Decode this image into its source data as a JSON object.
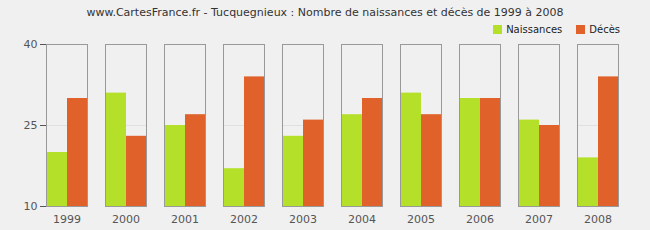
{
  "chart_data": {
    "type": "bar",
    "title": "www.CartesFrance.fr - Tucquegnieux : Nombre de naissances et décès de 1999 à 2008",
    "categories": [
      "1999",
      "2000",
      "2001",
      "2002",
      "2003",
      "2004",
      "2005",
      "2006",
      "2007",
      "2008"
    ],
    "series": [
      {
        "name": "Naissances",
        "color": "#b5e02a",
        "values": [
          20,
          31,
          25,
          17,
          23,
          27,
          31,
          30,
          26,
          19
        ]
      },
      {
        "name": "Décès",
        "color": "#e0622a",
        "values": [
          30,
          23,
          27,
          34,
          26,
          30,
          27,
          30,
          25,
          34
        ]
      }
    ],
    "ylim": [
      10,
      40
    ],
    "yticks": [
      10,
      25,
      40
    ],
    "grid": true,
    "legend": "top-right"
  }
}
